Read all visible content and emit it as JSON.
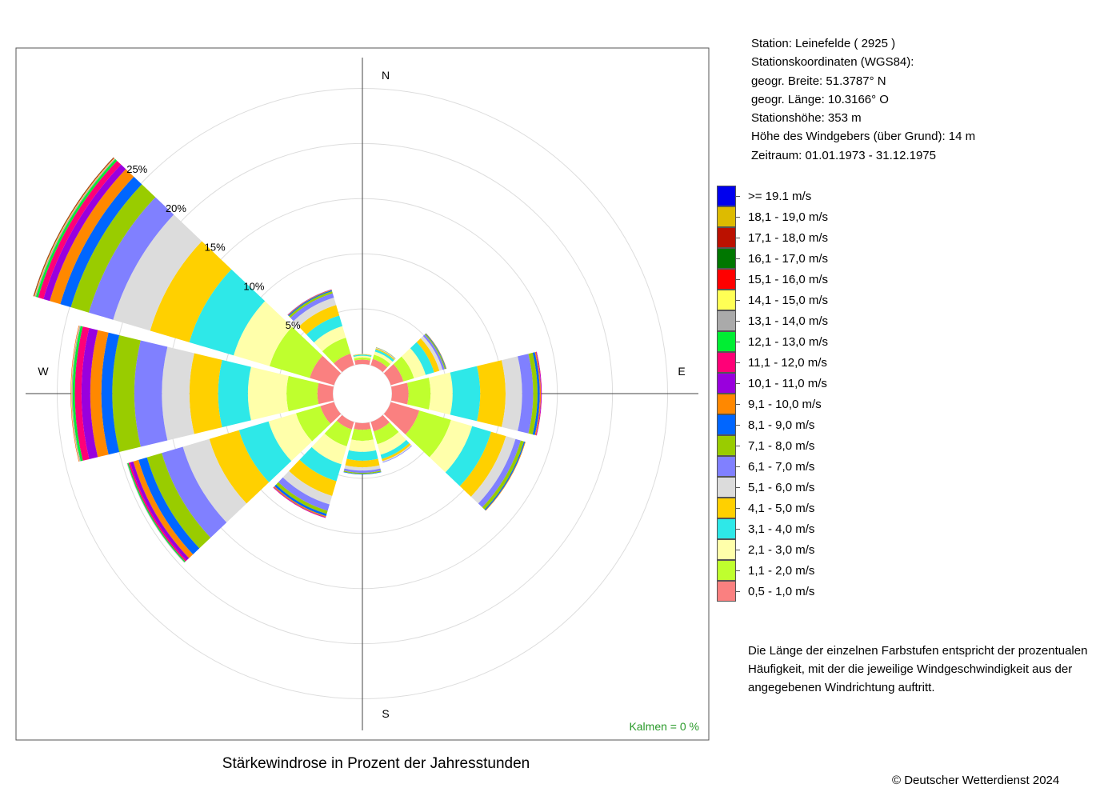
{
  "info": {
    "lines": [
      "Station:  Leinefelde  ( 2925 )",
      "Stationskoordinaten (WGS84):",
      "geogr. Breite: 51.3787° N",
      "geogr. Länge: 10.3166° O",
      "Stationshöhe: 353 m",
      "Höhe des Windgebers (über Grund): 14 m",
      "Zeitraum: 01.01.1973 - 31.12.1975"
    ]
  },
  "note": {
    "lines": [
      "Die Länge der einzelnen Farbstufen entspricht der prozentualen",
      "Häufigkeit, mit der die jeweilige Windgeschwindigkeit aus der",
      "angegebenen Windrichtung auftritt."
    ]
  },
  "caption": "Stärkewindrose in Prozent der Jahresstunden",
  "copyright": "© Deutscher Wetterdienst  2024",
  "calms_label": "Kalmen  =  0 %",
  "chart_data": {
    "type": "wind-rose",
    "title": "Stärkewindrose in Prozent der Jahresstunden",
    "compass_labels": [
      "N",
      "E",
      "S",
      "W"
    ],
    "ring_labels": [
      "5%",
      "10%",
      "15%",
      "20%",
      "25%"
    ],
    "ring_values": [
      5,
      10,
      15,
      20,
      25
    ],
    "unit": "percent",
    "calms_percent": 0,
    "speed_classes": [
      {
        "label": "0,5 - 1,0 m/s",
        "color": "#fa8080"
      },
      {
        "label": "1,1 - 2,0 m/s",
        "color": "#bfff2e"
      },
      {
        "label": "2,1 - 3,0 m/s",
        "color": "#ffffaa"
      },
      {
        "label": "3,1 - 4,0 m/s",
        "color": "#2ee8e8"
      },
      {
        "label": "4,1 - 5,0 m/s",
        "color": "#ffd000"
      },
      {
        "label": "5,1 - 6,0 m/s",
        "color": "#dcdcdc"
      },
      {
        "label": "6,1 - 7,0 m/s",
        "color": "#8080ff"
      },
      {
        "label": "7,1 - 8,0 m/s",
        "color": "#99cc00"
      },
      {
        "label": "8,1 - 9,0 m/s",
        "color": "#0066ff"
      },
      {
        "label": "9,1 - 10,0 m/s",
        "color": "#ff8800"
      },
      {
        "label": "10,1 - 11,0 m/s",
        "color": "#9900dd"
      },
      {
        "label": "11,1 - 12,0 m/s",
        "color": "#ff0077"
      },
      {
        "label": "12,1 - 13,0 m/s",
        "color": "#00ee33"
      },
      {
        "label": "13,1 - 14,0 m/s",
        "color": "#aaaaaa"
      },
      {
        "label": "14,1 - 15,0 m/s",
        "color": "#ffff55"
      },
      {
        "label": "15,1 - 16,0 m/s",
        "color": "#ff0000"
      },
      {
        "label": "16,1 - 17,0 m/s",
        "color": "#007700"
      },
      {
        "label": "17,1 - 18,0 m/s",
        "color": "#bb1100"
      },
      {
        "label": "18,1 - 19,0 m/s",
        "color": "#ddbb00"
      },
      {
        "label": ">= 19.1 m/s",
        "color": "#0000ee"
      }
    ],
    "directions": [
      {
        "dir": 0,
        "values": [
          0.4,
          0.2,
          0.15,
          0.1,
          0.05,
          0.03
        ]
      },
      {
        "dir": 30,
        "values": [
          0.6,
          0.4,
          0.3,
          0.2,
          0.1,
          0.05,
          0.03,
          0.02
        ]
      },
      {
        "dir": 60,
        "values": [
          1.2,
          1.0,
          1.1,
          0.8,
          0.5,
          0.3,
          0.2,
          0.1,
          0.05,
          0.03
        ]
      },
      {
        "dir": 90,
        "values": [
          1.5,
          2.0,
          2.0,
          2.5,
          2.3,
          1.5,
          1.0,
          0.4,
          0.2,
          0.1,
          0.05,
          0.03
        ]
      },
      {
        "dir": 120,
        "values": [
          2.7,
          3.0,
          2.0,
          1.8,
          1.4,
          0.9,
          0.5,
          0.3,
          0.1,
          0.05
        ]
      },
      {
        "dir": 150,
        "values": [
          0.9,
          1.2,
          1.0,
          0.4,
          0.2,
          0.1,
          0.05
        ]
      },
      {
        "dir": 180,
        "values": [
          0.6,
          1.0,
          1.0,
          0.8,
          0.6,
          0.3,
          0.2,
          0.1,
          0.05
        ]
      },
      {
        "dir": 210,
        "values": [
          0.7,
          1.6,
          1.7,
          1.6,
          1.4,
          0.8,
          0.6,
          0.3,
          0.2,
          0.1,
          0.05,
          0.03
        ]
      },
      {
        "dir": 240,
        "values": [
          1.3,
          2.3,
          2.6,
          2.8,
          2.8,
          2.5,
          2.0,
          1.4,
          0.8,
          0.5,
          0.3,
          0.15,
          0.1,
          0.05
        ]
      },
      {
        "dir": 270,
        "values": [
          1.4,
          2.8,
          3.5,
          2.7,
          2.6,
          2.5,
          2.5,
          2.0,
          1.0,
          1.0,
          0.8,
          0.6,
          0.2,
          0.1,
          0.05,
          0.03
        ]
      },
      {
        "dir": 300,
        "values": [
          2.3,
          3.8,
          3.4,
          4.2,
          3.7,
          3.5,
          2.3,
          1.7,
          1.0,
          1.0,
          0.6,
          0.5,
          0.2,
          0.1,
          0.05,
          0.05,
          0.03,
          0.02
        ]
      },
      {
        "dir": 330,
        "values": [
          1.1,
          1.5,
          1.1,
          1.0,
          1.0,
          0.7,
          0.4,
          0.2,
          0.1,
          0.05,
          0.03
        ]
      }
    ]
  }
}
